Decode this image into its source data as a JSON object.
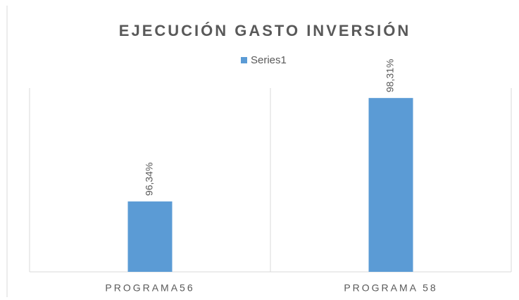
{
  "chart_data": {
    "type": "bar",
    "title": "EJECUCIÓN GASTO INVERSIÓN",
    "categories": [
      "PROGRAMA56",
      "PROGRAMA 58"
    ],
    "series": [
      {
        "name": "Series1",
        "color": "#5b9bd5",
        "values": [
          96.34,
          98.31
        ],
        "value_labels": [
          "96,34%",
          "98,31%"
        ]
      }
    ],
    "ylim": [
      95,
      98.5
    ],
    "legend": "top"
  }
}
